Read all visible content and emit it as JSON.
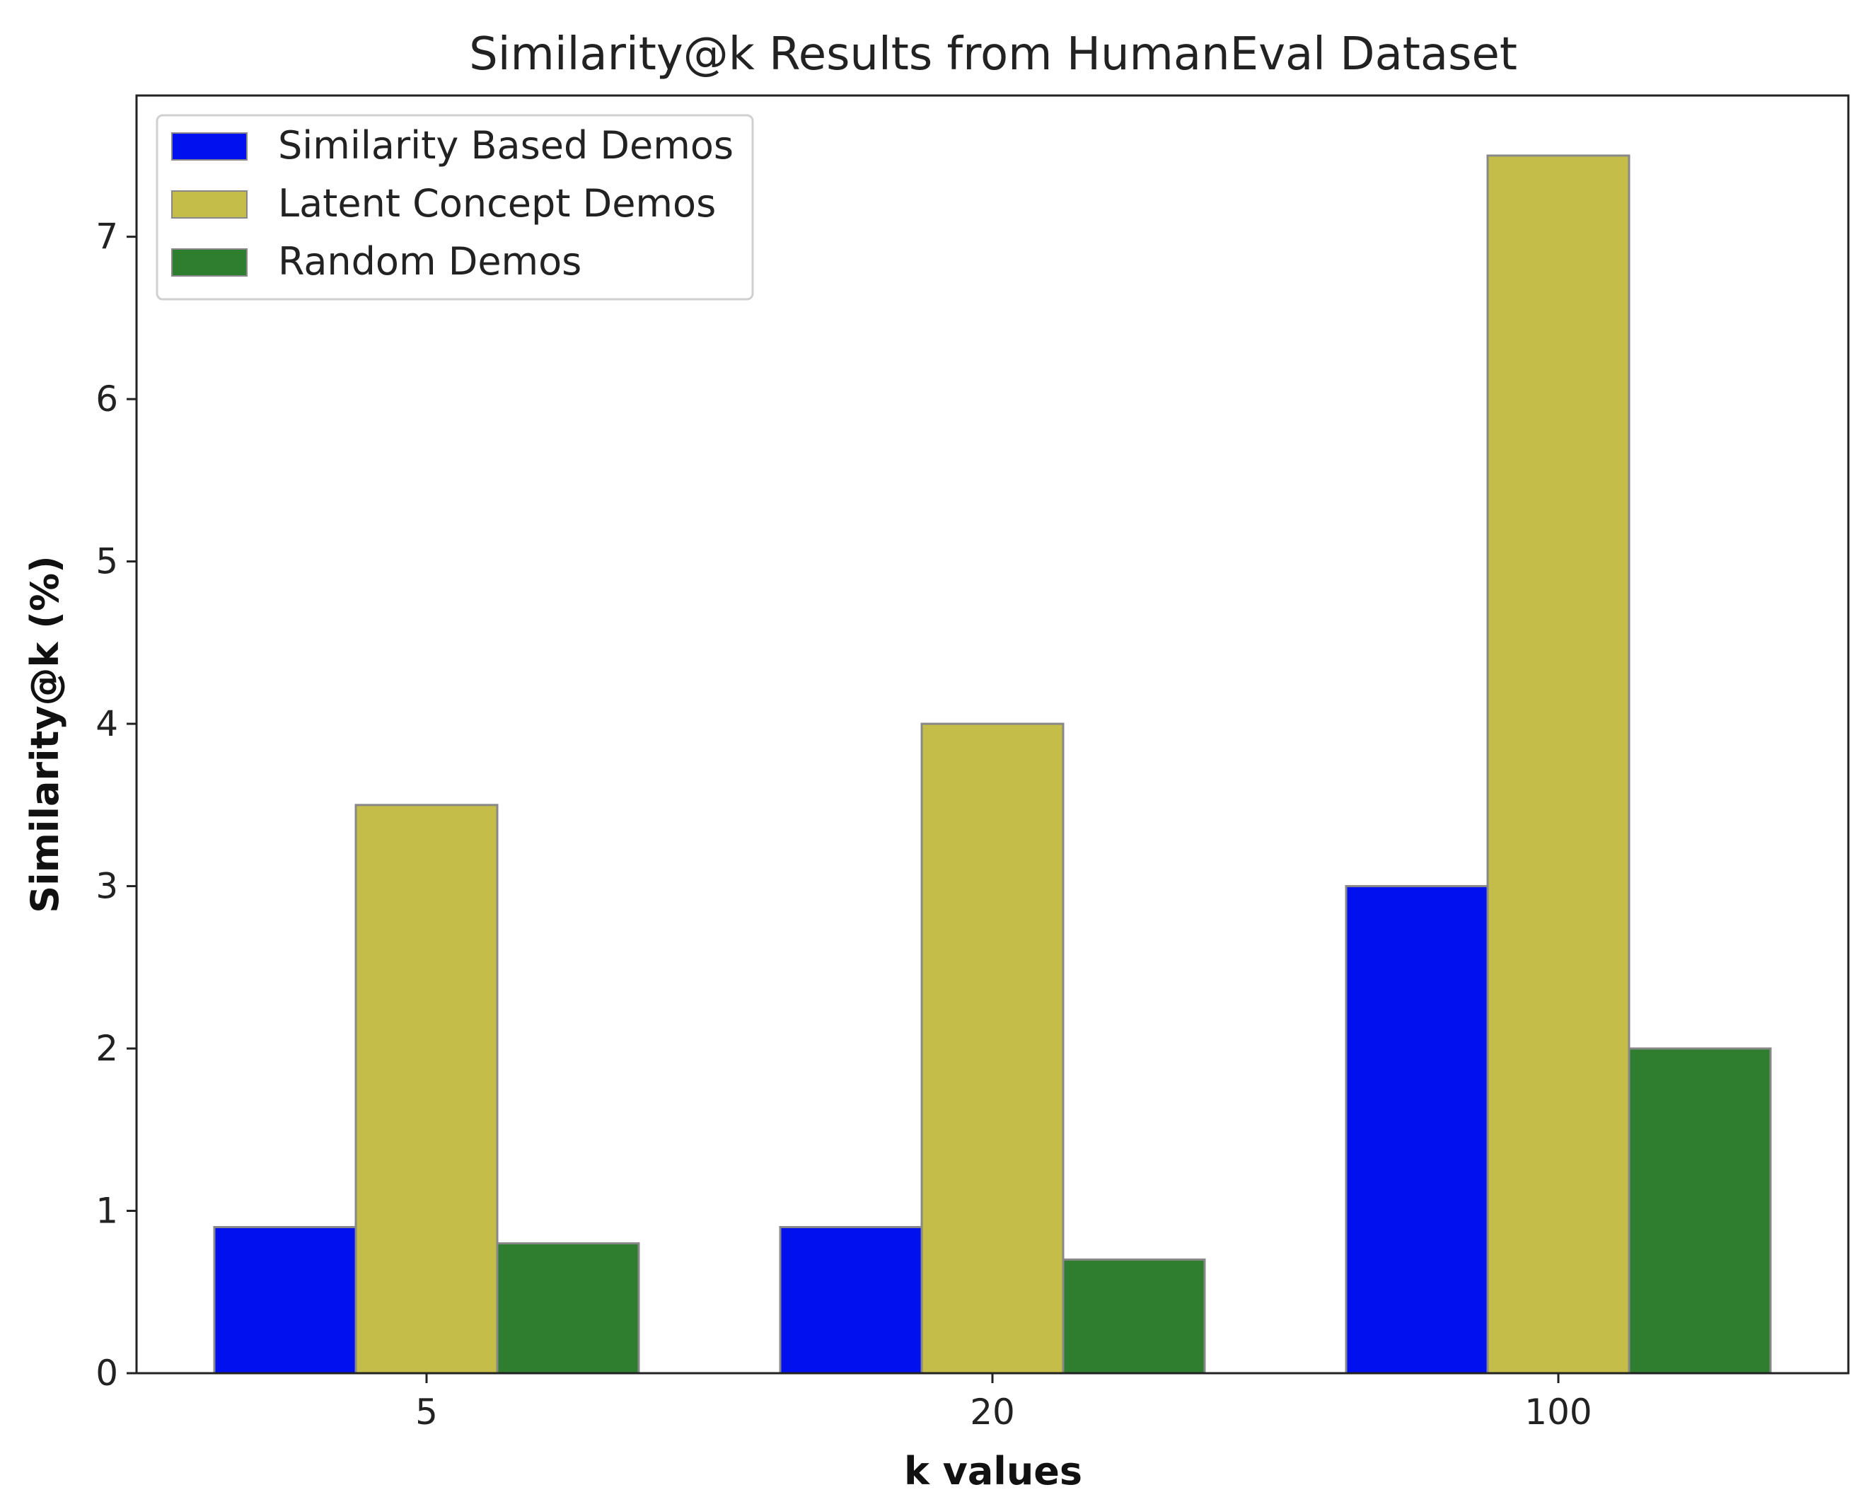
{
  "chart_data": {
    "type": "bar",
    "title": "Similarity@k Results from HumanEval Dataset",
    "xlabel": "k values",
    "ylabel": "Similarity@k (%)",
    "categories": [
      "5",
      "20",
      "100"
    ],
    "series": [
      {
        "name": "Similarity Based Demos",
        "values": [
          0.9,
          0.9,
          3.0
        ],
        "color": "#0010ee"
      },
      {
        "name": "Latent Concept Demos",
        "values": [
          3.5,
          4.0,
          7.5
        ],
        "color": "#c4bd49"
      },
      {
        "name": "Random Demos",
        "values": [
          0.8,
          0.7,
          2.0
        ],
        "color": "#2f7d2f"
      }
    ],
    "yticks": [
      "0",
      "1",
      "2",
      "3",
      "4",
      "5",
      "6",
      "7"
    ],
    "ylim": [
      0,
      7.87
    ],
    "grid": false,
    "legend_position": "top-left",
    "bar_edge_color": "#888888"
  }
}
